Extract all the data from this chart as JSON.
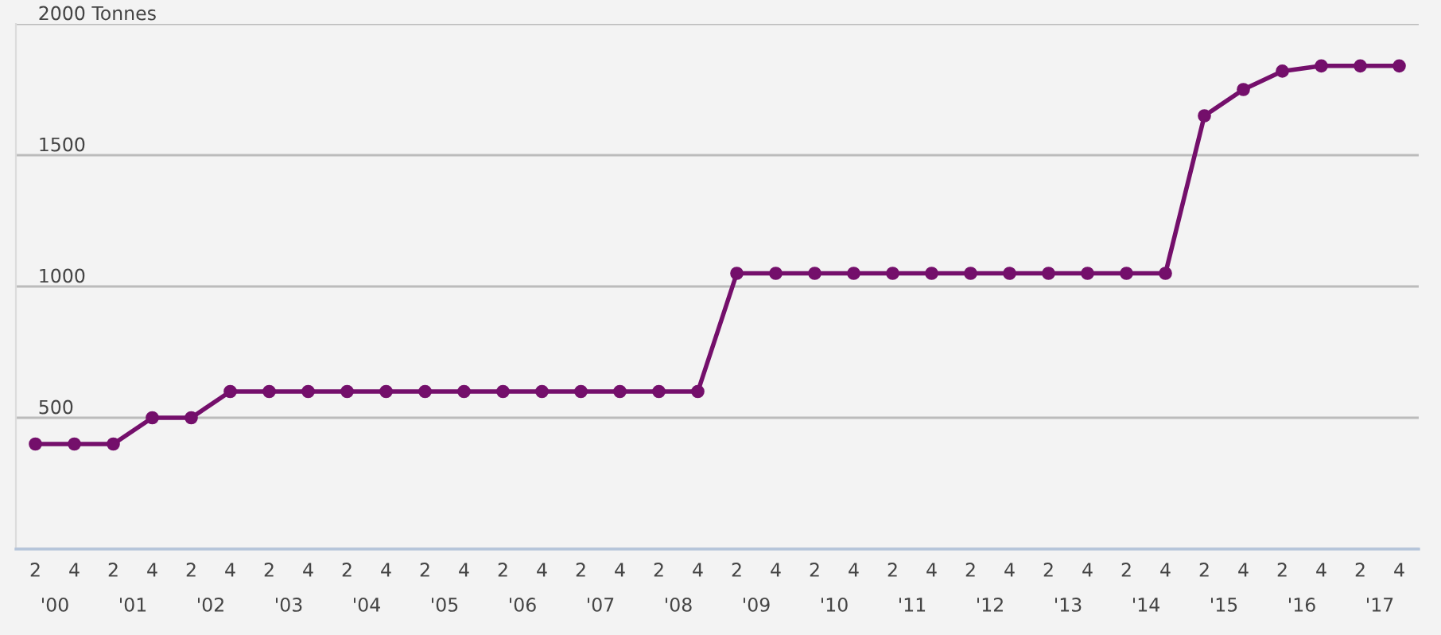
{
  "chart_data": {
    "type": "line",
    "categories": [
      "2",
      "4",
      "2",
      "4",
      "2",
      "4",
      "2",
      "4",
      "2",
      "4",
      "2",
      "4",
      "2",
      "4",
      "2",
      "4",
      "2",
      "4",
      "2",
      "4",
      "2",
      "4",
      "2",
      "4",
      "2",
      "4",
      "2",
      "4",
      "2",
      "4",
      "2",
      "4",
      "2",
      "4",
      "2",
      "4"
    ],
    "series": [
      {
        "color": "#740f6b",
        "values": [
          400,
          400,
          400,
          500,
          500,
          600,
          600,
          600,
          600,
          600,
          600,
          600,
          600,
          600,
          600,
          600,
          600,
          600,
          1050,
          1050,
          1050,
          1050,
          1050,
          1050,
          1050,
          1050,
          1050,
          1050,
          1050,
          1050,
          1650,
          1750,
          1820,
          1840,
          1840,
          1840
        ]
      }
    ],
    "annotations": [
      "'00",
      "'01",
      "'02",
      "'03",
      "'04",
      "'05",
      "'06",
      "'07",
      "'08",
      "'09",
      "'10",
      "'11",
      "'12",
      "'13",
      "'14",
      "'15",
      "'16",
      "'17"
    ],
    "ylim": [
      0,
      2000
    ],
    "yticks": [
      {
        "value": 0,
        "label": null
      },
      500,
      1000,
      1500,
      {
        "value": 2000,
        "label": "2000 Tonnes"
      }
    ],
    "grid": "y",
    "marker": "circle",
    "line_style": "solid"
  }
}
